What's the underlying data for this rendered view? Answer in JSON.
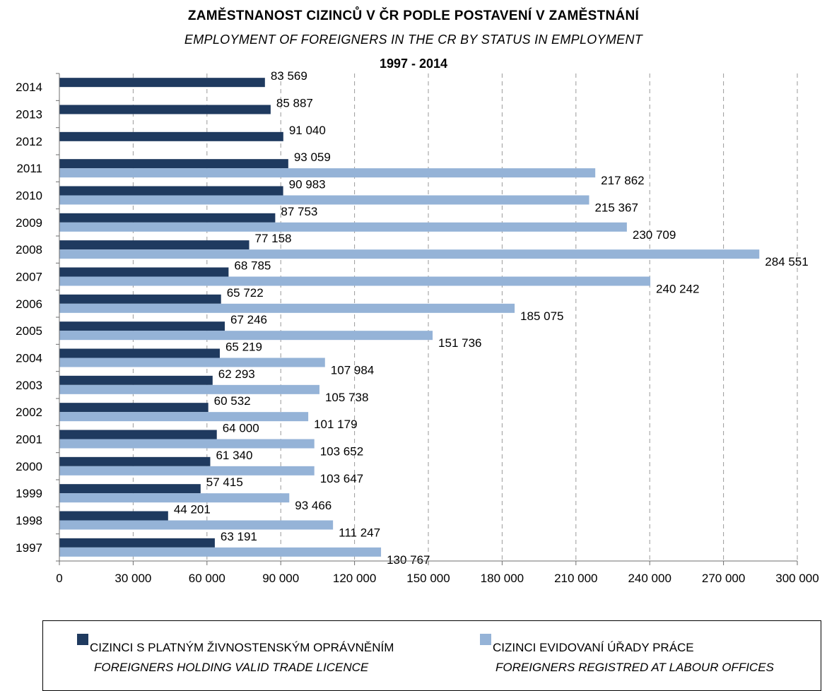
{
  "chart_data": {
    "type": "bar",
    "orientation": "horizontal",
    "title": "ZAMĚSTNANOST CIZINCŮ V ČR PODLE POSTAVENÍ V ZAMĚSTNÁNÍ",
    "subtitle": "EMPLOYMENT OF FOREIGNERS IN THE CR BY STATUS IN EMPLOYMENT",
    "period": "1997 - 2014",
    "categories": [
      "2014",
      "2013",
      "2012",
      "2011",
      "2010",
      "2009",
      "2008",
      "2007",
      "2006",
      "2005",
      "2004",
      "2003",
      "2002",
      "2001",
      "2000",
      "1999",
      "1998",
      "1997"
    ],
    "series": [
      {
        "name_cz": "CIZINCI S PLATNÝM ŽIVNOSTENSKÝM OPRÁVNĚNÍM",
        "name_en": "FOREIGNERS HOLDING VALID TRADE LICENCE",
        "color": "#1f3a5f",
        "values": [
          83569,
          85887,
          91040,
          93059,
          90983,
          87753,
          77158,
          68785,
          65722,
          67246,
          65219,
          62293,
          60532,
          64000,
          61340,
          57415,
          44201,
          63191
        ],
        "labels": [
          "83 569",
          "85 887",
          "91 040",
          "93 059",
          "90 983",
          "87 753",
          "77 158",
          "68 785",
          "65 722",
          "67 246",
          "65 219",
          "62 293",
          "60 532",
          "64 000",
          "61 340",
          "57 415",
          "44 201",
          "63 191"
        ]
      },
      {
        "name_cz": "CIZINCI EVIDOVANÍ ÚŘADY PRÁCE",
        "name_en": "FOREIGNERS REGISTRED AT LABOUR OFFICES",
        "color": "#95b3d7",
        "values": [
          null,
          null,
          null,
          217862,
          215367,
          230709,
          284551,
          240242,
          185075,
          151736,
          107984,
          105738,
          101179,
          103652,
          103647,
          93466,
          111247,
          130767
        ],
        "labels": [
          "",
          "",
          "",
          "217 862",
          "215 367",
          "230 709",
          "284 551",
          "240 242",
          "185 075",
          "151 736",
          "107 984",
          "105 738",
          "101 179",
          "103 652",
          "103 647",
          "93 466",
          "111 247",
          "130 767"
        ]
      }
    ],
    "x_ticks": [
      0,
      30000,
      60000,
      90000,
      120000,
      150000,
      180000,
      210000,
      240000,
      270000,
      300000
    ],
    "x_tick_labels": [
      "0",
      "30 000",
      "60 000",
      "90 000",
      "120 000",
      "150 000",
      "180 000",
      "210 000",
      "240 000",
      "270 000",
      "300 000"
    ],
    "xlim": [
      0,
      300000
    ],
    "grid": "vertical dashed",
    "legend_position": "bottom"
  }
}
